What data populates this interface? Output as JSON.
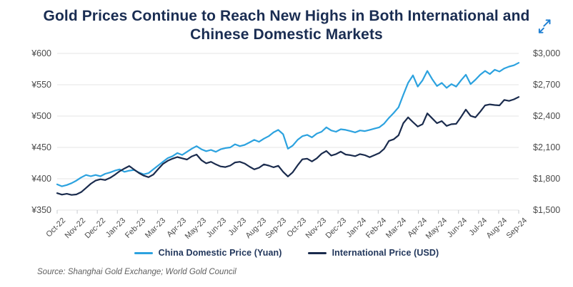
{
  "title": "Gold Prices Continue to Reach New Highs in Both International and Chinese Domestic Markets",
  "source_note": "Source: Shanghai Gold Exchange; World Gold Council",
  "colors": {
    "title": "#1a2d52",
    "grid": "#e4e4e4",
    "tick": "#c9ccd0",
    "axis_text": "#4b4b4b",
    "china_line": "#2ca2df",
    "international_line": "#1a2b4d",
    "expand_icon": "#1e7fd2"
  },
  "icons": {
    "expand": "expand-diagonal-arrows"
  },
  "chart_data": {
    "type": "line",
    "title": "Gold Prices Continue to Reach New Highs in Both International and Chinese Domestic Markets",
    "grid": "horizontal",
    "legend_position": "bottom",
    "x_tick_labels": [
      "Oct-22",
      "Nov-22",
      "Dec-22",
      "Jan-23",
      "Feb-23",
      "Mar-23",
      "Apr-23",
      "May-23",
      "Jun-23",
      "Jul-23",
      "Aug-23",
      "Sep-23",
      "Oct-23",
      "Nov-23",
      "Dec-23",
      "Jan-24",
      "Feb-24",
      "Mar-24",
      "Apr-24",
      "May-24",
      "Jun-24",
      "Jul-24",
      "Aug-24",
      "Sep-24"
    ],
    "left_axis": {
      "currency": "CNY",
      "tick_labels": [
        "¥600",
        "¥550",
        "¥500",
        "¥450",
        "¥400",
        "¥350"
      ],
      "tick_values": [
        600,
        550,
        500,
        450,
        400,
        350
      ],
      "range": [
        350,
        600
      ]
    },
    "right_axis": {
      "currency": "USD",
      "tick_labels": [
        "$3,000",
        "$2,700",
        "$2,400",
        "$2,100",
        "$1,800",
        "$1,500"
      ],
      "tick_values": [
        3000,
        2700,
        2400,
        2100,
        1800,
        1500
      ],
      "range": [
        1500,
        3000
      ]
    },
    "series": [
      {
        "name": "China Domestic Price (Yuan)",
        "axis": "left",
        "color": "#2ca2df",
        "values": [
          391,
          388,
          390,
          393,
          397,
          402,
          406,
          404,
          406,
          404,
          408,
          410,
          413,
          415,
          411,
          413,
          414,
          410,
          407,
          409,
          415,
          421,
          427,
          433,
          436,
          441,
          438,
          443,
          448,
          452,
          447,
          444,
          446,
          443,
          447,
          449,
          450,
          455,
          452,
          454,
          458,
          462,
          459,
          464,
          468,
          474,
          478,
          471,
          448,
          453,
          462,
          468,
          470,
          466,
          472,
          475,
          482,
          477,
          475,
          479,
          478,
          476,
          474,
          477,
          476,
          478,
          480,
          482,
          488,
          497,
          505,
          514,
          534,
          553,
          565,
          547,
          557,
          572,
          559,
          548,
          553,
          545,
          551,
          547,
          557,
          566,
          551,
          558,
          566,
          572,
          567,
          574,
          571,
          576,
          579,
          581,
          585
        ]
      },
      {
        "name": "International Price (USD)",
        "axis": "right",
        "color": "#1a2b4d",
        "values": [
          1662,
          1648,
          1656,
          1645,
          1650,
          1672,
          1712,
          1752,
          1782,
          1795,
          1788,
          1808,
          1838,
          1872,
          1898,
          1922,
          1888,
          1855,
          1830,
          1815,
          1840,
          1892,
          1942,
          1972,
          1992,
          2008,
          1996,
          1984,
          2014,
          2032,
          1978,
          1948,
          1962,
          1938,
          1918,
          1912,
          1926,
          1956,
          1962,
          1946,
          1916,
          1890,
          1906,
          1938,
          1926,
          1910,
          1924,
          1866,
          1822,
          1862,
          1928,
          1986,
          1992,
          1966,
          1996,
          2040,
          2066,
          2022,
          2036,
          2060,
          2032,
          2026,
          2016,
          2036,
          2026,
          2006,
          2026,
          2046,
          2086,
          2162,
          2178,
          2216,
          2332,
          2388,
          2342,
          2300,
          2322,
          2426,
          2378,
          2332,
          2352,
          2306,
          2322,
          2326,
          2392,
          2462,
          2402,
          2388,
          2442,
          2502,
          2512,
          2506,
          2502,
          2555,
          2545,
          2560,
          2583
        ]
      }
    ]
  }
}
